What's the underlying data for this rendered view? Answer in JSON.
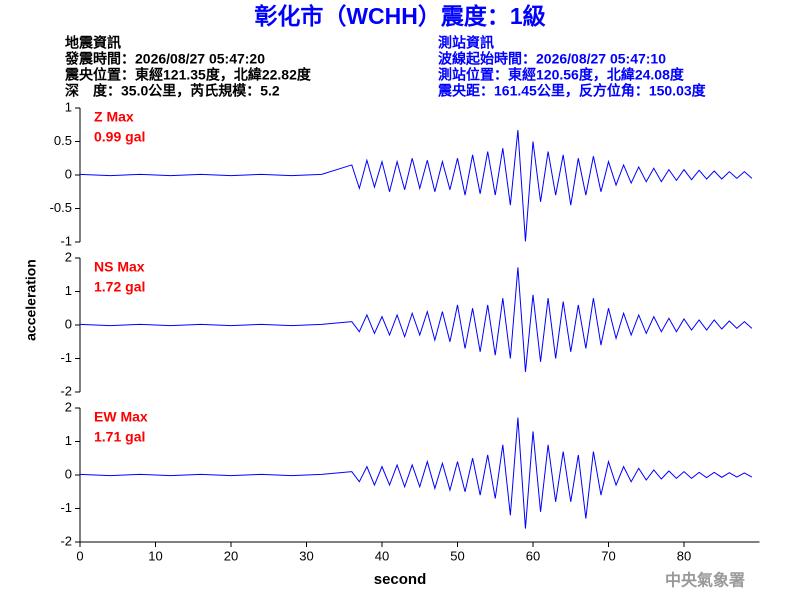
{
  "header": {
    "title": "彰化市（WCHH）震度：1級",
    "left": [
      "地震資訊",
      "發震時間：2026/08/27 05:47:20",
      "震央位置：東經121.35度，北緯22.82度",
      "深　度：35.0公里，芮氏規模：5.2"
    ],
    "right": [
      "測站資訊",
      "波線起始時間：2026/08/27 05:47:10",
      "測站位置：東經120.56度，北緯24.08度",
      "震央距：161.45公里，反方位角：150.03度"
    ]
  },
  "footer": "中央氣象署",
  "chart_data": [
    {
      "type": "line",
      "annotations": [
        "Z Max",
        "0.99 gal"
      ],
      "color": "#0000ff",
      "ylim": [
        -1,
        1
      ],
      "yticks": [
        -1,
        -0.5,
        0,
        0.5,
        1
      ],
      "x": [
        0,
        4,
        8,
        12,
        16,
        20,
        24,
        28,
        32,
        36,
        37,
        38,
        39,
        40,
        41,
        42,
        43,
        44,
        45,
        46,
        47,
        48,
        49,
        50,
        51,
        52,
        53,
        54,
        55,
        56,
        57,
        58,
        59,
        60,
        61,
        62,
        63,
        64,
        65,
        66,
        67,
        68,
        69,
        70,
        71,
        72,
        73,
        74,
        75,
        76,
        77,
        78,
        79,
        80,
        81,
        82,
        83,
        84,
        85,
        86,
        87,
        88,
        89
      ],
      "values": [
        0.01,
        -0.01,
        0.01,
        -0.01,
        0.01,
        -0.01,
        0.01,
        -0.01,
        0.01,
        0.15,
        -0.2,
        0.22,
        -0.18,
        0.2,
        -0.25,
        0.2,
        -0.22,
        0.25,
        -0.2,
        0.22,
        -0.25,
        0.2,
        -0.22,
        0.25,
        -0.3,
        0.3,
        -0.28,
        0.35,
        -0.3,
        0.4,
        -0.45,
        0.67,
        -0.99,
        0.5,
        -0.4,
        0.35,
        -0.3,
        0.3,
        -0.45,
        0.25,
        -0.3,
        0.28,
        -0.25,
        0.2,
        -0.15,
        0.15,
        -0.12,
        0.12,
        -0.1,
        0.1,
        -0.1,
        0.08,
        -0.08,
        0.08,
        -0.07,
        0.07,
        -0.06,
        0.06,
        -0.06,
        0.05,
        -0.05,
        0.05,
        -0.05
      ]
    },
    {
      "type": "line",
      "annotations": [
        "NS Max",
        "1.72 gal"
      ],
      "color": "#0000ff",
      "ylim": [
        -2,
        2
      ],
      "yticks": [
        -2,
        -1,
        0,
        1,
        2
      ],
      "ylabel": "acceleration",
      "x": [
        0,
        4,
        8,
        12,
        16,
        20,
        24,
        28,
        32,
        36,
        37,
        38,
        39,
        40,
        41,
        42,
        43,
        44,
        45,
        46,
        47,
        48,
        49,
        50,
        51,
        52,
        53,
        54,
        55,
        56,
        57,
        58,
        59,
        60,
        61,
        62,
        63,
        64,
        65,
        66,
        67,
        68,
        69,
        70,
        71,
        72,
        73,
        74,
        75,
        76,
        77,
        78,
        79,
        80,
        81,
        82,
        83,
        84,
        85,
        86,
        87,
        88,
        89
      ],
      "values": [
        0.02,
        -0.02,
        0.02,
        -0.02,
        0.02,
        -0.02,
        0.02,
        -0.02,
        0.02,
        0.1,
        -0.2,
        0.3,
        -0.25,
        0.25,
        -0.3,
        0.3,
        -0.35,
        0.35,
        -0.3,
        0.4,
        -0.45,
        0.4,
        -0.5,
        0.6,
        -0.7,
        0.5,
        -0.8,
        0.6,
        -0.9,
        0.8,
        -1.0,
        1.72,
        -1.4,
        0.9,
        -1.1,
        0.8,
        -1.0,
        0.7,
        -0.8,
        0.6,
        -0.7,
        0.8,
        -0.6,
        0.5,
        -0.4,
        0.35,
        -0.3,
        0.3,
        -0.25,
        0.25,
        -0.2,
        0.2,
        -0.2,
        0.18,
        -0.15,
        0.15,
        -0.15,
        0.15,
        -0.12,
        0.12,
        -0.1,
        0.1,
        -0.1
      ]
    },
    {
      "type": "line",
      "annotations": [
        "EW Max",
        "1.71 gal"
      ],
      "color": "#0000ff",
      "ylim": [
        -2,
        2
      ],
      "yticks": [
        -2,
        -1,
        0,
        1,
        2
      ],
      "xlabel": "second",
      "xlim": [
        0,
        90
      ],
      "xticks": [
        0,
        10,
        20,
        30,
        40,
        50,
        60,
        70,
        80
      ],
      "x": [
        0,
        4,
        8,
        12,
        16,
        20,
        24,
        28,
        32,
        36,
        37,
        38,
        39,
        40,
        41,
        42,
        43,
        44,
        45,
        46,
        47,
        48,
        49,
        50,
        51,
        52,
        53,
        54,
        55,
        56,
        57,
        58,
        59,
        60,
        61,
        62,
        63,
        64,
        65,
        66,
        67,
        68,
        69,
        70,
        71,
        72,
        73,
        74,
        75,
        76,
        77,
        78,
        79,
        80,
        81,
        82,
        83,
        84,
        85,
        86,
        87,
        88,
        89
      ],
      "values": [
        0.02,
        -0.02,
        0.02,
        -0.02,
        0.02,
        -0.02,
        0.02,
        -0.02,
        0.02,
        0.1,
        -0.2,
        0.25,
        -0.3,
        0.25,
        -0.3,
        0.3,
        -0.35,
        0.3,
        -0.35,
        0.4,
        -0.4,
        0.35,
        -0.45,
        0.4,
        -0.5,
        0.5,
        -0.6,
        0.6,
        -0.7,
        0.9,
        -1.2,
        1.71,
        -1.6,
        1.3,
        -1.1,
        0.9,
        -0.8,
        0.7,
        -0.8,
        0.6,
        -1.3,
        0.7,
        -0.6,
        0.4,
        -0.3,
        0.25,
        -0.2,
        0.2,
        -0.15,
        0.15,
        -0.12,
        0.12,
        -0.1,
        0.1,
        -0.1,
        0.08,
        -0.08,
        0.08,
        -0.07,
        0.07,
        -0.06,
        0.06,
        -0.06
      ]
    }
  ]
}
